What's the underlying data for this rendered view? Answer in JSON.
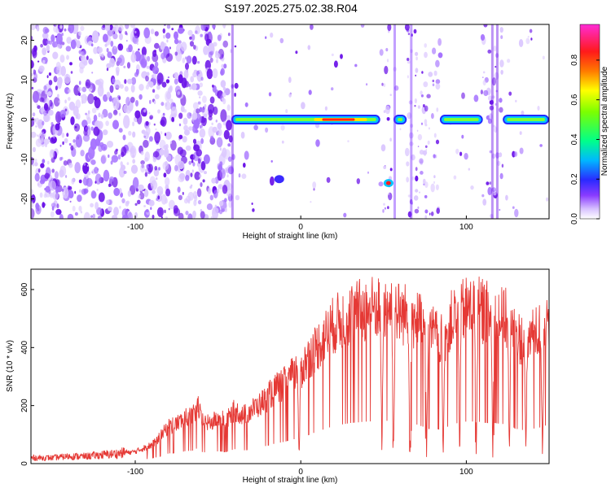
{
  "title": "S197.2025.275.02.38.R04",
  "colors": {
    "snr_line": "#e53935",
    "spectrogram_points": "#6a1be0",
    "colorbar": [
      "#ffffff",
      "#c9a6ff",
      "#7a2cff",
      "#2a2aff",
      "#00b7ff",
      "#00ff8a",
      "#7cff00",
      "#ffff00",
      "#ff7a00",
      "#ff1a1a",
      "#ff2bd6"
    ]
  },
  "chart_data": [
    {
      "type": "heatmap",
      "xlabel": "Height of straight line (km)",
      "ylabel": "Frequency (Hz)",
      "xlim": [
        -163,
        150
      ],
      "ylim": [
        -25,
        24
      ],
      "x_ticks": [
        -100,
        0,
        100
      ],
      "x_tick_labels": [
        "-100",
        "0",
        "100"
      ],
      "y_ticks": [
        -20,
        -10,
        0,
        10,
        20
      ],
      "y_tick_labels": [
        "-20",
        "-10",
        "0",
        "10",
        "20"
      ],
      "grid": false,
      "colorbar": {
        "label": "Normalized spectral amplitude",
        "range": [
          0,
          0.98
        ],
        "ticks": [
          0.0,
          0.2,
          0.4,
          0.6,
          0.8
        ],
        "tick_labels": [
          "0.0",
          "0.2",
          "0.4",
          "0.6",
          "0.8"
        ]
      },
      "features": {
        "noise_region_km": [
          -163,
          -42
        ],
        "signal_band_hz": 0,
        "signal_segments_km": [
          [
            -42,
            48
          ],
          [
            56,
            64
          ],
          [
            84,
            110
          ],
          [
            122,
            150
          ]
        ],
        "gap_segments_km": [
          [
            48,
            56
          ],
          [
            64,
            84
          ],
          [
            110,
            122
          ]
        ],
        "secondary_spots": [
          [
            -13,
            -15
          ],
          [
            53,
            -16
          ]
        ]
      }
    },
    {
      "type": "line",
      "xlabel": "Height of straight line (km)",
      "ylabel": "SNR (10 * v/v)",
      "xlim": [
        -163,
        150
      ],
      "ylim": [
        0,
        670
      ],
      "x_ticks": [
        -100,
        0,
        100
      ],
      "x_tick_labels": [
        "-100",
        "0",
        "100"
      ],
      "y_ticks": [
        0,
        200,
        400,
        600
      ],
      "y_tick_labels": [
        "0",
        "200",
        "400",
        "600"
      ],
      "grid": false,
      "series": [
        {
          "name": "",
          "x": [
            -163,
            -150,
            -140,
            -130,
            -120,
            -110,
            -100,
            -90,
            -85,
            -80,
            -75,
            -70,
            -65,
            -62,
            -60,
            -55,
            -50,
            -45,
            -40,
            -35,
            -30,
            -25,
            -20,
            -15,
            -10,
            -5,
            -2,
            -1,
            0,
            5,
            10,
            15,
            20,
            25,
            30,
            35,
            40,
            45,
            48,
            49,
            50,
            55,
            56,
            57,
            60,
            65,
            66,
            67,
            70,
            75,
            76,
            77,
            80,
            85,
            86,
            87,
            90,
            95,
            96,
            97,
            100,
            105,
            106,
            107,
            110,
            115,
            116,
            117,
            120,
            125,
            126,
            127,
            130,
            135,
            136,
            137,
            140,
            145,
            146,
            147,
            150
          ],
          "y": [
            20,
            20,
            25,
            25,
            30,
            35,
            45,
            70,
            100,
            140,
            150,
            170,
            180,
            220,
            160,
            150,
            170,
            160,
            200,
            180,
            200,
            220,
            250,
            280,
            300,
            330,
            350,
            20,
            350,
            400,
            440,
            480,
            520,
            540,
            560,
            570,
            580,
            585,
            590,
            20,
            590,
            590,
            20,
            580,
            560,
            560,
            20,
            540,
            540,
            500,
            20,
            480,
            490,
            460,
            20,
            480,
            530,
            560,
            20,
            570,
            580,
            580,
            20,
            580,
            570,
            560,
            20,
            560,
            550,
            540,
            20,
            520,
            480,
            460,
            20,
            470,
            480,
            500,
            20,
            520,
            540
          ]
        }
      ]
    }
  ]
}
